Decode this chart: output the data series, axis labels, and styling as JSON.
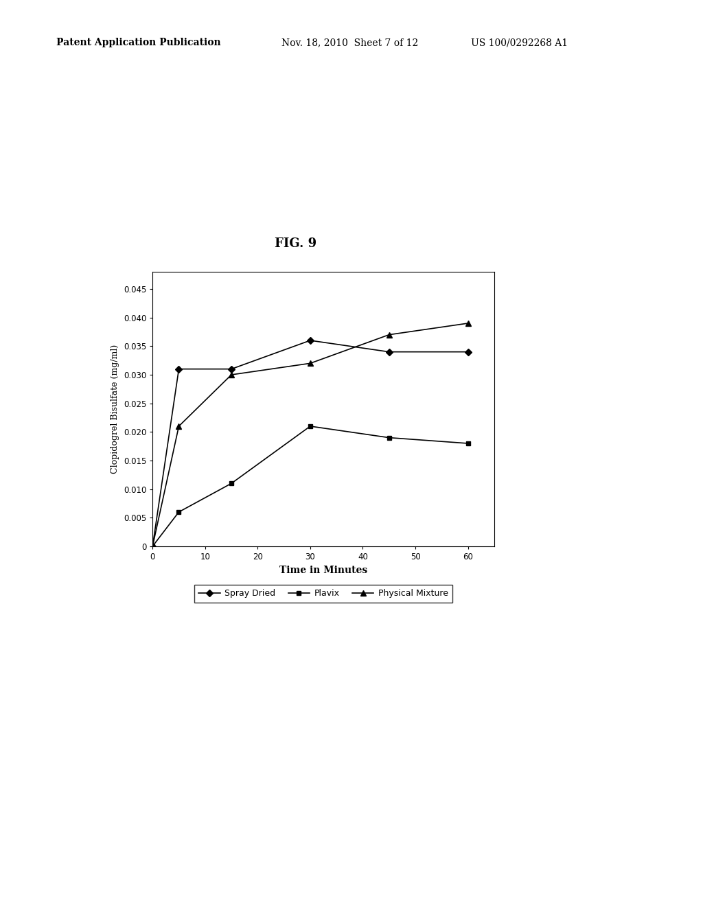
{
  "title": "FIG. 9",
  "xlabel": "Time in Minutes",
  "ylabel": "Clopidogrel Bisulfate (mg/ml)",
  "xlim": [
    0,
    65
  ],
  "ylim": [
    0,
    0.048
  ],
  "xticks": [
    0,
    10,
    20,
    30,
    40,
    50,
    60
  ],
  "yticks": [
    0,
    0.005,
    0.01,
    0.015,
    0.02,
    0.025,
    0.03,
    0.035,
    0.04,
    0.045
  ],
  "spray_dried": {
    "x": [
      0,
      5,
      15,
      30,
      45,
      60
    ],
    "y": [
      0,
      0.031,
      0.031,
      0.036,
      0.034,
      0.034
    ],
    "label": "Spray Dried"
  },
  "plavix": {
    "x": [
      0,
      5,
      15,
      30,
      45,
      60
    ],
    "y": [
      0,
      0.006,
      0.011,
      0.021,
      0.019,
      0.018
    ],
    "label": "Plavix"
  },
  "physical_mixture": {
    "x": [
      0,
      5,
      15,
      30,
      45,
      60
    ],
    "y": [
      0,
      0.021,
      0.03,
      0.032,
      0.037,
      0.039
    ],
    "label": "Physical Mixture"
  },
  "fig_bg_color": "#ffffff",
  "header_left": "Patent Application Publication",
  "header_mid": "Nov. 18, 2010  Sheet 7 of 12",
  "header_right": "US 100/0292268 A1"
}
